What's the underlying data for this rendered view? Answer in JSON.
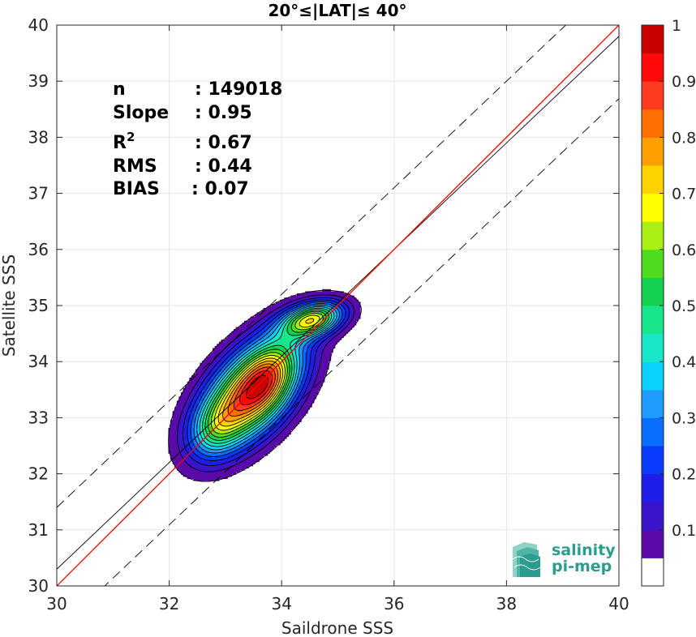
{
  "chart_data": {
    "type": "heatmap",
    "title": "20°≤|LAT|≤ 40°",
    "xlabel": "Saildrone SSS",
    "ylabel": "Satellite SSS",
    "xlim": [
      30,
      40
    ],
    "ylim": [
      30,
      40
    ],
    "xticks": [
      30,
      32,
      34,
      36,
      38,
      40
    ],
    "yticks": [
      30,
      31,
      32,
      33,
      34,
      35,
      36,
      37,
      38,
      39,
      40
    ],
    "grid": true,
    "stats": [
      {
        "label": "n",
        "sep": ":",
        "value": "149018"
      },
      {
        "label": "Slope",
        "sep": ":",
        "value": "0.95"
      },
      {
        "label": "R",
        "sup": "2",
        "sep": ":",
        "value": "0.67"
      },
      {
        "label": "RMS",
        "sep": ":",
        "value": "0.44"
      },
      {
        "label": "BIAS",
        "sep": ":",
        "value": "0.07"
      }
    ],
    "lines": {
      "identity": {
        "color": "#ff0000",
        "slope": 1,
        "intercept": 0
      },
      "fit": {
        "color": "#000000",
        "slope": 0.95,
        "intercept": 1.8
      },
      "bounds": {
        "color": "#000000",
        "style": "dashed",
        "slope": 0.95,
        "offsets": [
          1.1,
          -1.11
        ]
      }
    },
    "density_peaks": [
      {
        "cx": 33.45,
        "cy": 33.45,
        "sx": 0.6,
        "sy": 0.65,
        "rho": 0.55,
        "amp": 1.0
      },
      {
        "cx": 33.8,
        "cy": 33.75,
        "sx": 0.3,
        "sy": 0.4,
        "rho": 0.3,
        "amp": 0.2
      },
      {
        "cx": 32.8,
        "cy": 32.8,
        "sx": 0.3,
        "sy": 0.35,
        "rho": 0.2,
        "amp": 0.2
      },
      {
        "cx": 34.55,
        "cy": 34.75,
        "sx": 0.38,
        "sy": 0.22,
        "rho": 0.35,
        "amp": 0.7
      }
    ],
    "colorbar": {
      "min": 0,
      "max": 1,
      "ticks": [
        0.1,
        0.2,
        0.3,
        0.4,
        0.5,
        0.6,
        0.7,
        0.8,
        0.9,
        1
      ],
      "tick_labels": [
        "0.1",
        "0.2",
        "0.3",
        "0.4",
        "0.5",
        "0.6",
        "0.7",
        "0.8",
        "0.9",
        "1"
      ],
      "levels": [
        0.05,
        0.1,
        0.15,
        0.2,
        0.25,
        0.3,
        0.35,
        0.4,
        0.45,
        0.5,
        0.55,
        0.6,
        0.65,
        0.7,
        0.75,
        0.8,
        0.85,
        0.9,
        0.95
      ],
      "colors": [
        "#ffffff",
        "#5a0aa8",
        "#3a14c8",
        "#1e1ee8",
        "#0a3cff",
        "#0a6eff",
        "#1e9bff",
        "#0ad2ff",
        "#19e6c8",
        "#19e68c",
        "#14d250",
        "#50dc1e",
        "#aaf014",
        "#ffff00",
        "#ffd200",
        "#ffa000",
        "#ff6e00",
        "#ff3c1e",
        "#ff0a0a",
        "#c80000",
        "#8c0000"
      ]
    }
  },
  "logo": {
    "line1": "salinity",
    "line2": "pi-mep"
  }
}
